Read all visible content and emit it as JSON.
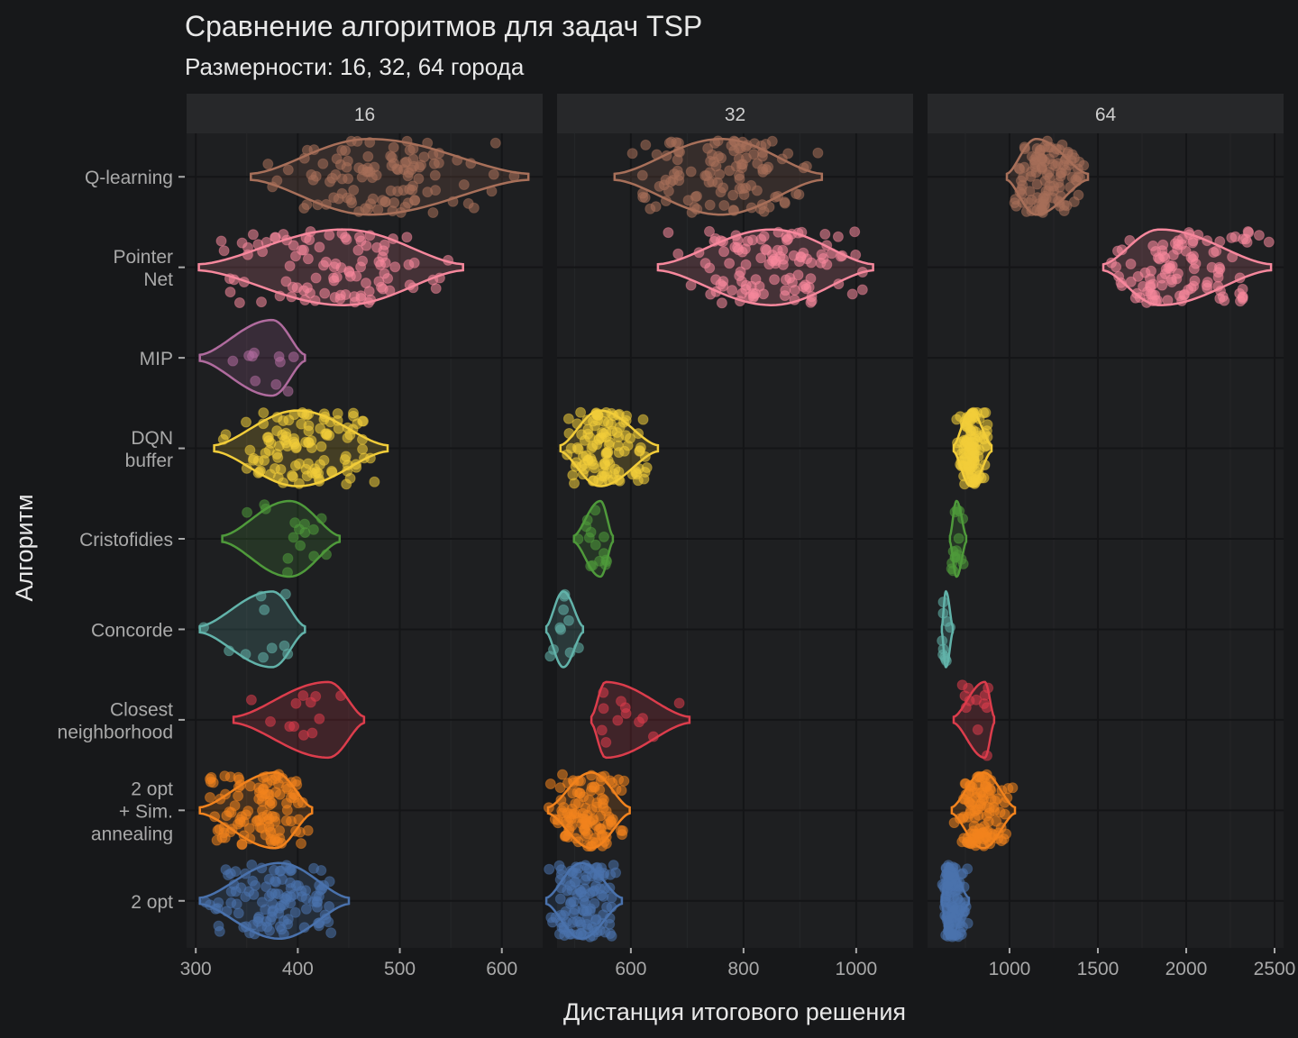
{
  "chart_data": {
    "type": "violin",
    "title": "Сравнение алгоритмов для задач TSP",
    "subtitle": "Размерности: 16, 32, 64 города",
    "xlabel": "Дистанция итогового решения",
    "ylabel": "Алгоритм",
    "grid": true,
    "legend": "none",
    "categories": [
      {
        "key": "Q-learning",
        "lines": [
          "Q-learning"
        ],
        "color": "#a8705a"
      },
      {
        "key": "Pointer Net",
        "lines": [
          "Pointer",
          "Net"
        ],
        "color": "#f7889d"
      },
      {
        "key": "MIP",
        "lines": [
          "MIP"
        ],
        "color": "#b06b9e"
      },
      {
        "key": "DQN buffer",
        "lines": [
          "DQN",
          "buffer"
        ],
        "color": "#f2cd3a"
      },
      {
        "key": "Cristofidies",
        "lines": [
          "Cristofidies"
        ],
        "color": "#4f9a3b"
      },
      {
        "key": "Concorde",
        "lines": [
          "Concorde"
        ],
        "color": "#62b3aa"
      },
      {
        "key": "Closest neighborhood",
        "lines": [
          "Closest",
          "neighborhood"
        ],
        "color": "#dc3d4c"
      },
      {
        "key": "2 opt + Sim. annealing",
        "lines": [
          "2 opt",
          "+ Sim.",
          "annealing"
        ],
        "color": "#f3841e"
      },
      {
        "key": "2 opt",
        "lines": [
          "2 opt"
        ],
        "color": "#4a72ad"
      }
    ],
    "facets": [
      {
        "label": "16",
        "xlim": [
          291,
          640
        ],
        "ticks": [
          300,
          400,
          500,
          600
        ],
        "minor_ticks": [
          350,
          450,
          550
        ],
        "series": {
          "Q-learning": {
            "min": 354,
            "max": 626,
            "mode": 470,
            "n": 110
          },
          "Pointer Net": {
            "min": 303,
            "max": 562,
            "mode": 445,
            "n": 100
          },
          "MIP": {
            "min": 304,
            "max": 407,
            "mode": 375,
            "n": 10
          },
          "DQN buffer": {
            "min": 318,
            "max": 488,
            "mode": 400,
            "n": 110
          },
          "Cristofidies": {
            "min": 326,
            "max": 441,
            "mode": 392,
            "n": 15
          },
          "Concorde": {
            "min": 304,
            "max": 407,
            "mode": 375,
            "n": 10
          },
          "Closest neighborhood": {
            "min": 337,
            "max": 465,
            "mode": 430,
            "n": 12
          },
          "2 opt + Sim. annealing": {
            "min": 304,
            "max": 414,
            "mode": 378,
            "n": 110
          },
          "2 opt": {
            "min": 304,
            "max": 450,
            "mode": 382,
            "n": 110
          }
        }
      },
      {
        "label": "32",
        "xlim": [
          469,
          1101
        ],
        "ticks": [
          600,
          800,
          1000
        ],
        "minor_ticks": [
          500,
          700,
          900
        ],
        "series": {
          "Q-learning": {
            "min": 571,
            "max": 939,
            "mode": 760,
            "n": 110
          },
          "Pointer Net": {
            "min": 648,
            "max": 1030,
            "mode": 850,
            "n": 110
          },
          "DQN buffer": {
            "min": 475,
            "max": 648,
            "mode": 545,
            "n": 110
          },
          "Cristofidies": {
            "min": 499,
            "max": 568,
            "mode": 546,
            "n": 15
          },
          "Concorde": {
            "min": 450,
            "max": 515,
            "mode": 480,
            "n": 10
          },
          "Closest neighborhood": {
            "min": 530,
            "max": 704,
            "mode": 555,
            "n": 12
          },
          "2 opt + Sim. annealing": {
            "min": 453,
            "max": 598,
            "mode": 530,
            "n": 110
          },
          "2 opt": {
            "min": 450,
            "max": 584,
            "mode": 512,
            "n": 110
          }
        }
      },
      {
        "label": "64",
        "xlim": [
          536,
          2551
        ],
        "ticks": [
          1000,
          1500,
          2000,
          2500
        ],
        "minor_ticks": [
          750,
          1250,
          1750,
          2250
        ],
        "series": {
          "Q-learning": {
            "min": 985,
            "max": 1444,
            "mode": 1150,
            "n": 110
          },
          "Pointer Net": {
            "min": 1531,
            "max": 2480,
            "mode": 1850,
            "n": 110
          },
          "DQN buffer": {
            "min": 684,
            "max": 898,
            "mode": 780,
            "n": 110
          },
          "Cristofidies": {
            "min": 663,
            "max": 755,
            "mode": 700,
            "n": 15
          },
          "Concorde": {
            "min": 617,
            "max": 679,
            "mode": 640,
            "n": 10
          },
          "Closest neighborhood": {
            "min": 684,
            "max": 913,
            "mode": 860,
            "n": 12
          },
          "2 opt + Sim. annealing": {
            "min": 673,
            "max": 1031,
            "mode": 850,
            "n": 110
          },
          "2 opt": {
            "min": 617,
            "max": 770,
            "mode": 650,
            "n": 110
          }
        }
      }
    ]
  },
  "colors": {
    "background": "#17181a",
    "panel": "#1e1f21",
    "strip": "#27282a",
    "text": "#e8e8e8",
    "axis_text": "#a9a9a9"
  }
}
